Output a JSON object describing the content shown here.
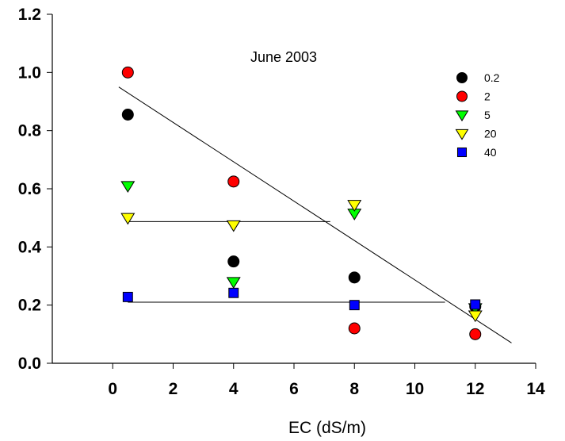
{
  "chart_data": {
    "type": "scatter",
    "title": "",
    "annotation": "June 2003",
    "xlabel": "EC (dS/m)",
    "ylabel": "",
    "xlim": [
      -2,
      14
    ],
    "ylim": [
      0,
      1.2
    ],
    "xticks": [
      0,
      2,
      4,
      6,
      8,
      10,
      12,
      14
    ],
    "xtick_labels": [
      "0",
      "2",
      "4",
      "6",
      "8",
      "10",
      "12",
      "14"
    ],
    "yticks": [
      0,
      0.2,
      0.4,
      0.6,
      0.8,
      1.0,
      1.2
    ],
    "ytick_labels": [
      "0.0",
      "0.2",
      "0.4",
      "0.6",
      "0.8",
      "1.0",
      "1.2"
    ],
    "grid": false,
    "legend_position": "top-right",
    "series": [
      {
        "name": "0.2",
        "marker": "circle",
        "color": "#000000",
        "x": [
          0.5,
          4,
          8,
          12
        ],
        "y": [
          0.855,
          0.35,
          0.295,
          0.195
        ]
      },
      {
        "name": "2",
        "marker": "circle",
        "color": "#ff0000",
        "x": [
          0.5,
          4,
          8,
          12
        ],
        "y": [
          1.0,
          0.625,
          0.12,
          0.1
        ]
      },
      {
        "name": "5",
        "marker": "triangle-down",
        "color": "#00ff00",
        "x": [
          0.5,
          4,
          8,
          12
        ],
        "y": [
          0.61,
          0.28,
          0.515,
          0.19
        ]
      },
      {
        "name": "20",
        "marker": "triangle-down",
        "color": "#ffff00",
        "x": [
          0.5,
          4,
          8,
          12
        ],
        "y": [
          0.5,
          0.475,
          0.545,
          0.165
        ]
      },
      {
        "name": "40",
        "marker": "square",
        "color": "#0000ff",
        "x": [
          0.5,
          4,
          8,
          12
        ],
        "y": [
          0.228,
          0.242,
          0.2,
          0.202
        ]
      }
    ],
    "lines": [
      {
        "x": [
          0.2,
          13.2
        ],
        "y": [
          0.95,
          0.07
        ]
      },
      {
        "x": [
          0.5,
          7.2
        ],
        "y": [
          0.487,
          0.487
        ]
      },
      {
        "x": [
          0.5,
          11.0
        ],
        "y": [
          0.21,
          0.21
        ]
      }
    ]
  }
}
